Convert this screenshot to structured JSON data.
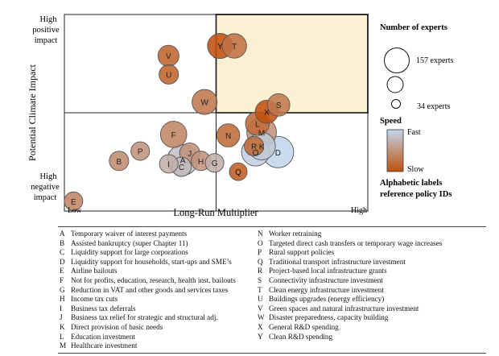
{
  "chart_data": {
    "type": "scatter",
    "title": "",
    "xlabel": "Long-Run Multiplier",
    "ylabel": "Potential Climate Impact",
    "x_tick_low": "Low",
    "x_tick_high": "High",
    "y_tick_high": "High\npositive\nimpact",
    "y_tick_low": "High\nnegative\nimpact",
    "xlim": [
      0,
      1
    ],
    "ylim": [
      0,
      1
    ],
    "quadrant_highlight": {
      "x": [
        0.5,
        1.0
      ],
      "y": [
        0.5,
        1.0
      ],
      "color": "#fdf0d2"
    },
    "speed_colors": {
      "fast": "#c2d6ec",
      "slow": "#c0500c"
    },
    "points": [
      {
        "id": "A",
        "x": 0.39,
        "y": 0.26,
        "experts": 150,
        "speed": 0.15
      },
      {
        "id": "B",
        "x": 0.18,
        "y": 0.255,
        "experts": 60,
        "speed": 0.55
      },
      {
        "id": "C",
        "x": 0.386,
        "y": 0.225,
        "experts": 60,
        "speed": 0.2
      },
      {
        "id": "D",
        "x": 0.704,
        "y": 0.3,
        "experts": 157,
        "speed": 0.0
      },
      {
        "id": "E",
        "x": 0.03,
        "y": 0.05,
        "experts": 55,
        "speed": 0.6
      },
      {
        "id": "F",
        "x": 0.36,
        "y": 0.39,
        "experts": 110,
        "speed": 0.6
      },
      {
        "id": "G",
        "x": 0.495,
        "y": 0.245,
        "experts": 55,
        "speed": 0.3
      },
      {
        "id": "H",
        "x": 0.45,
        "y": 0.255,
        "experts": 60,
        "speed": 0.5
      },
      {
        "id": "I",
        "x": 0.344,
        "y": 0.24,
        "experts": 55,
        "speed": 0.3
      },
      {
        "id": "J",
        "x": 0.413,
        "y": 0.295,
        "experts": 65,
        "speed": 0.5
      },
      {
        "id": "K",
        "x": 0.65,
        "y": 0.33,
        "experts": 120,
        "speed": 0.1
      },
      {
        "id": "L",
        "x": 0.636,
        "y": 0.445,
        "experts": 90,
        "speed": 0.8
      },
      {
        "id": "M",
        "x": 0.65,
        "y": 0.4,
        "experts": 140,
        "speed": 0.5
      },
      {
        "id": "N",
        "x": 0.54,
        "y": 0.385,
        "experts": 85,
        "speed": 0.8
      },
      {
        "id": "O",
        "x": 0.63,
        "y": 0.3,
        "experts": 125,
        "speed": 0.05
      },
      {
        "id": "P",
        "x": 0.25,
        "y": 0.305,
        "experts": 55,
        "speed": 0.5
      },
      {
        "id": "Q",
        "x": 0.573,
        "y": 0.2,
        "experts": 50,
        "speed": 0.9
      },
      {
        "id": "R",
        "x": 0.625,
        "y": 0.33,
        "experts": 60,
        "speed": 0.8
      },
      {
        "id": "S",
        "x": 0.706,
        "y": 0.54,
        "experts": 80,
        "speed": 0.7
      },
      {
        "id": "T",
        "x": 0.56,
        "y": 0.84,
        "experts": 95,
        "speed": 0.75
      },
      {
        "id": "U",
        "x": 0.344,
        "y": 0.695,
        "experts": 60,
        "speed": 0.85
      },
      {
        "id": "V",
        "x": 0.343,
        "y": 0.79,
        "experts": 70,
        "speed": 0.85
      },
      {
        "id": "W",
        "x": 0.462,
        "y": 0.555,
        "experts": 100,
        "speed": 0.7
      },
      {
        "id": "X",
        "x": 0.667,
        "y": 0.505,
        "experts": 85,
        "speed": 1.0
      },
      {
        "id": "Y",
        "x": 0.513,
        "y": 0.84,
        "experts": 100,
        "speed": 1.0
      }
    ],
    "size_legend": {
      "title": "Number of experts",
      "max_label": "157 experts",
      "min_label": "34 experts",
      "values": [
        157,
        85,
        34
      ]
    },
    "speed_legend": {
      "title": "Speed",
      "fast_label": "Fast",
      "slow_label": "Slow"
    },
    "note": "Alphabetic labels reference policy IDs"
  },
  "legend_left": [
    {
      "id": "A",
      "text": "Temporary waiver of interest payments"
    },
    {
      "id": "B",
      "text": "Assisted bankruptcy (super Chapter 11)"
    },
    {
      "id": "C",
      "text": "Liquidity support for large corporations"
    },
    {
      "id": "D",
      "text": "Liquidity support for households, start-ups and SME’s"
    },
    {
      "id": "E",
      "text": "Airline bailouts"
    },
    {
      "id": "F",
      "text": "Not for profits, education, research, health inst. bailouts"
    },
    {
      "id": "G",
      "text": "Reduction in VAT and other goods and services taxes"
    },
    {
      "id": "H",
      "text": "Income tax cuts"
    },
    {
      "id": "I",
      "text": "Business tax deferrals"
    },
    {
      "id": "J",
      "text": "Business tax relief for strategic and structural adj."
    },
    {
      "id": "K",
      "text": "Direct provision of basic needs"
    },
    {
      "id": "L",
      "text": "Education investment"
    },
    {
      "id": "M",
      "text": "Healthcare investment"
    }
  ],
  "legend_right": [
    {
      "id": "N",
      "text": "Worker retraining"
    },
    {
      "id": "O",
      "text": "Targeted direct cash transfers or temporary wage increases"
    },
    {
      "id": "P",
      "text": "Rural support policies"
    },
    {
      "id": "Q",
      "text": "Traditional transport infrastructure investment"
    },
    {
      "id": "R",
      "text": "Project-based local infrastructure grants"
    },
    {
      "id": "S",
      "text": "Connectivity infrastructure investment"
    },
    {
      "id": "T",
      "text": "Clean energy infrastructure investment"
    },
    {
      "id": "U",
      "text": "Buildings upgrades (energy efficiency)"
    },
    {
      "id": "V",
      "text": "Green spaces and natural infrastructure investment"
    },
    {
      "id": "W",
      "text": "Disaster preparedness, capacity building"
    },
    {
      "id": "X",
      "text": "General R&D spending"
    },
    {
      "id": "Y",
      "text": "Clean R&D spending"
    }
  ]
}
